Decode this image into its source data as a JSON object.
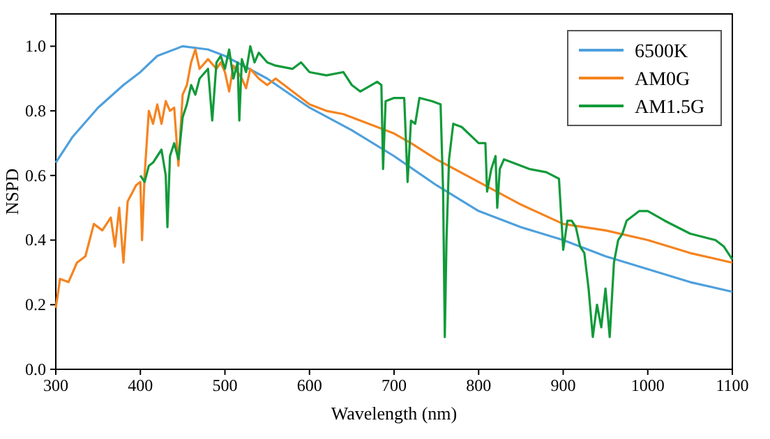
{
  "chart_data": {
    "type": "line",
    "xlabel": "Wavelength (nm)",
    "ylabel": "NSPD",
    "xlim": [
      300,
      1100
    ],
    "ylim": [
      0,
      1.1
    ],
    "xticks": [
      300,
      400,
      500,
      600,
      700,
      800,
      900,
      1000,
      1100
    ],
    "yticks": [
      {
        "value": 0,
        "label": "0.0"
      },
      {
        "value": 0.2,
        "label": "0.2"
      },
      {
        "value": 0.4,
        "label": "0.4"
      },
      {
        "value": 0.6,
        "label": "0.6"
      },
      {
        "value": 0.8,
        "label": "0.8"
      },
      {
        "value": 1,
        "label": "1.0"
      }
    ],
    "grid": false,
    "legend": "top right",
    "series": [
      {
        "name": "6500K",
        "color": "#4ea0dc",
        "x": [
          300,
          320,
          350,
          380,
          400,
          420,
          450,
          480,
          500,
          550,
          600,
          650,
          700,
          750,
          800,
          850,
          900,
          950,
          1000,
          1050,
          1100
        ],
        "values": [
          0.64,
          0.72,
          0.81,
          0.88,
          0.92,
          0.97,
          1.0,
          0.99,
          0.97,
          0.9,
          0.81,
          0.74,
          0.66,
          0.57,
          0.49,
          0.44,
          0.4,
          0.35,
          0.31,
          0.27,
          0.24
        ]
      },
      {
        "name": "AM0G",
        "color": "#f5831f",
        "x": [
          300,
          305,
          315,
          325,
          335,
          345,
          355,
          365,
          370,
          375,
          380,
          385,
          395,
          400,
          402,
          405,
          410,
          415,
          420,
          425,
          430,
          435,
          440,
          445,
          450,
          455,
          460,
          465,
          470,
          480,
          490,
          495,
          500,
          505,
          510,
          520,
          525,
          530,
          540,
          550,
          560,
          580,
          600,
          620,
          640,
          660,
          680,
          700,
          720,
          750,
          800,
          850,
          900,
          950,
          1000,
          1050,
          1100
        ],
        "values": [
          0.19,
          0.28,
          0.27,
          0.33,
          0.35,
          0.45,
          0.43,
          0.47,
          0.38,
          0.5,
          0.33,
          0.52,
          0.57,
          0.58,
          0.4,
          0.6,
          0.8,
          0.76,
          0.82,
          0.76,
          0.83,
          0.8,
          0.81,
          0.63,
          0.85,
          0.88,
          0.95,
          0.99,
          0.93,
          0.96,
          0.93,
          0.95,
          0.92,
          0.86,
          0.94,
          0.9,
          0.87,
          0.93,
          0.9,
          0.88,
          0.9,
          0.86,
          0.82,
          0.8,
          0.79,
          0.77,
          0.75,
          0.73,
          0.7,
          0.65,
          0.58,
          0.51,
          0.45,
          0.43,
          0.4,
          0.36,
          0.33
        ]
      },
      {
        "name": "AM1.5G",
        "color": "#119a3a",
        "x": [
          400,
          405,
          410,
          415,
          420,
          425,
          430,
          432,
          435,
          440,
          445,
          450,
          455,
          460,
          465,
          470,
          480,
          485,
          490,
          495,
          500,
          505,
          510,
          515,
          517,
          520,
          525,
          530,
          535,
          540,
          550,
          560,
          580,
          590,
          600,
          620,
          640,
          650,
          660,
          680,
          685,
          687,
          690,
          700,
          712,
          716,
          720,
          725,
          730,
          745,
          755,
          758,
          760,
          762,
          765,
          770,
          780,
          800,
          808,
          810,
          815,
          820,
          822,
          825,
          830,
          840,
          860,
          880,
          895,
          900,
          905,
          910,
          915,
          920,
          925,
          930,
          935,
          940,
          945,
          950,
          955,
          960,
          965,
          970,
          975,
          990,
          1000,
          1020,
          1050,
          1080,
          1090,
          1100
        ],
        "values": [
          0.6,
          0.58,
          0.63,
          0.64,
          0.66,
          0.68,
          0.6,
          0.44,
          0.66,
          0.7,
          0.65,
          0.78,
          0.82,
          0.88,
          0.85,
          0.9,
          0.93,
          0.77,
          0.95,
          0.97,
          0.93,
          0.99,
          0.9,
          0.95,
          0.77,
          0.96,
          0.92,
          1.0,
          0.95,
          0.98,
          0.95,
          0.94,
          0.93,
          0.95,
          0.92,
          0.91,
          0.92,
          0.88,
          0.86,
          0.89,
          0.88,
          0.62,
          0.83,
          0.84,
          0.84,
          0.58,
          0.77,
          0.76,
          0.84,
          0.83,
          0.82,
          0.55,
          0.1,
          0.4,
          0.65,
          0.76,
          0.75,
          0.7,
          0.7,
          0.55,
          0.62,
          0.66,
          0.5,
          0.62,
          0.65,
          0.64,
          0.62,
          0.61,
          0.59,
          0.37,
          0.46,
          0.46,
          0.44,
          0.38,
          0.36,
          0.25,
          0.1,
          0.2,
          0.13,
          0.25,
          0.1,
          0.33,
          0.4,
          0.42,
          0.46,
          0.49,
          0.49,
          0.46,
          0.42,
          0.4,
          0.38,
          0.34
        ]
      }
    ]
  }
}
